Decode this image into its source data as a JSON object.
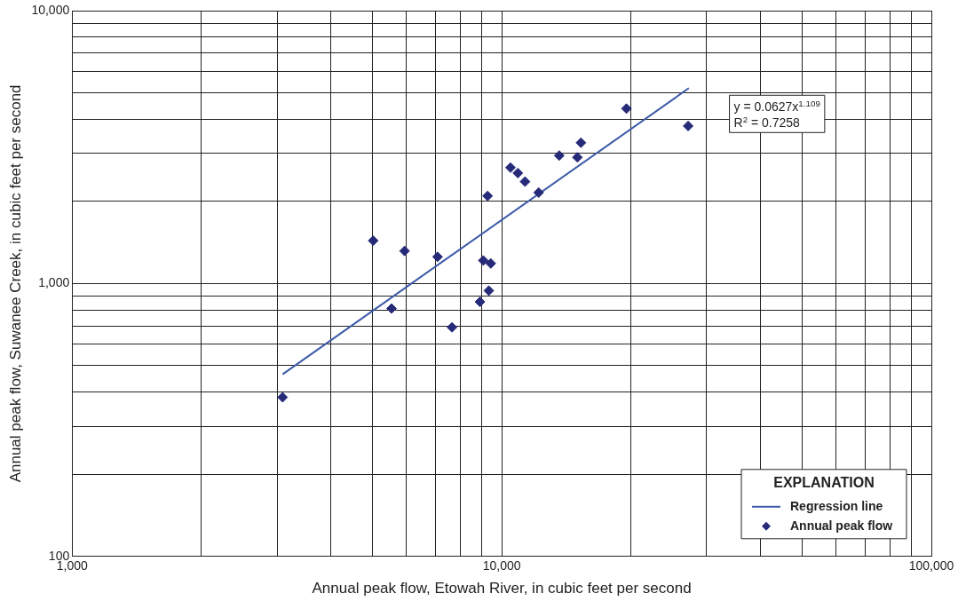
{
  "chart_data": {
    "type": "scatter",
    "xlabel": "Annual peak flow, Etowah River, in cubic feet per second",
    "ylabel": "Annual peak flow, Suwanee Creek, in cubic feet per second",
    "log": "xy",
    "grid": true,
    "legend": "bottom right",
    "legend_title": "EXPLANATION",
    "xlim": [
      1000,
      100000
    ],
    "ylim": [
      100,
      10000
    ],
    "xticks": [
      {
        "value": 1000,
        "label": "1,000"
      },
      {
        "value": 2000,
        "label": null
      },
      {
        "value": 3000,
        "label": null
      },
      {
        "value": 4000,
        "label": null
      },
      {
        "value": 5000,
        "label": null
      },
      {
        "value": 6000,
        "label": null
      },
      {
        "value": 7000,
        "label": null
      },
      {
        "value": 8000,
        "label": null
      },
      {
        "value": 9000,
        "label": null
      },
      {
        "value": 10000,
        "label": "10,000"
      },
      {
        "value": 20000,
        "label": null
      },
      {
        "value": 30000,
        "label": null
      },
      {
        "value": 40000,
        "label": null
      },
      {
        "value": 50000,
        "label": null
      },
      {
        "value": 60000,
        "label": null
      },
      {
        "value": 70000,
        "label": null
      },
      {
        "value": 80000,
        "label": null
      },
      {
        "value": 90000,
        "label": null
      },
      {
        "value": 100000,
        "label": "100,000"
      }
    ],
    "yticks": [
      {
        "value": 100,
        "label": "100"
      },
      {
        "value": 200,
        "label": null
      },
      {
        "value": 300,
        "label": null
      },
      {
        "value": 400,
        "label": null
      },
      {
        "value": 500,
        "label": null
      },
      {
        "value": 600,
        "label": null
      },
      {
        "value": 700,
        "label": null
      },
      {
        "value": 800,
        "label": null
      },
      {
        "value": 900,
        "label": null
      },
      {
        "value": 1000,
        "label": "1,000"
      },
      {
        "value": 2000,
        "label": null
      },
      {
        "value": 3000,
        "label": null
      },
      {
        "value": 4000,
        "label": null
      },
      {
        "value": 5000,
        "label": null
      },
      {
        "value": 6000,
        "label": null
      },
      {
        "value": 7000,
        "label": null
      },
      {
        "value": 8000,
        "label": null
      },
      {
        "value": 9000,
        "label": null
      },
      {
        "value": 10000,
        "label": "10,000"
      }
    ],
    "annotations": [
      "y = 0.0627x$^{1.109}$",
      "R$^{2}$ = 0.7258"
    ],
    "series": [
      {
        "type": "line",
        "name": "Regression line",
        "color": "#3c5aa8",
        "line_style": "solid",
        "marker": "none",
        "x": [
          3090,
          27260
        ],
        "values": [
          465,
          5200
        ]
      },
      {
        "type": "scatter",
        "name": "Annual peak flow",
        "color": "#262a78",
        "marker": "diamond",
        "x": [
          3090,
          5020,
          5540,
          5940,
          7090,
          7660,
          8900,
          9060,
          9430,
          9330,
          9270,
          10480,
          10900,
          11330,
          12190,
          13610,
          15000,
          15290,
          19510,
          27160
        ],
        "values": [
          383,
          1436,
          810,
          1317,
          1253,
          691,
          857,
          1215,
          1185,
          942,
          2094,
          2659,
          2540,
          2363,
          2155,
          2945,
          2900,
          3281,
          4375,
          3780
        ]
      }
    ]
  }
}
